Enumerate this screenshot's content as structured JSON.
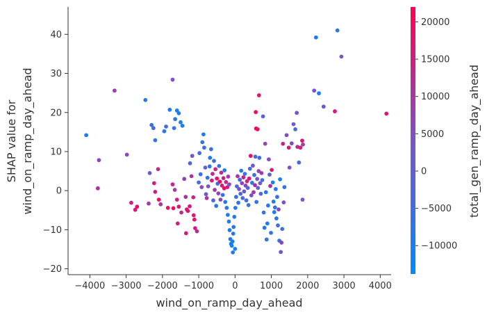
{
  "chart_data": {
    "type": "scatter",
    "title": "",
    "xlabel": "wind_on_ramp_day_ahead",
    "ylabel_line1": "SHAP value for",
    "ylabel_line2": "wind_on_ramp_day_ahead",
    "xlim": [
      -4600,
      4300
    ],
    "ylim": [
      -21.5,
      47
    ],
    "xticks": [
      -4000,
      -3000,
      -2000,
      -1000,
      0,
      1000,
      2000,
      3000,
      4000
    ],
    "yticks": [
      -20,
      -10,
      0,
      10,
      20,
      30,
      40
    ],
    "grid": false,
    "colorbar": {
      "label": "total_gen_ramp_day_ahead",
      "range": [
        -13800,
        22000
      ],
      "ticks": [
        -10000,
        -5000,
        0,
        5000,
        10000,
        15000,
        20000
      ],
      "low_color": "#008afb",
      "mid_color": "#7c52c8",
      "high_color": "#ff0052"
    },
    "points": [
      {
        "x": -4100,
        "y": 14.2,
        "c": -9000
      },
      {
        "x": -3750,
        "y": 7.8,
        "c": 6000
      },
      {
        "x": -3780,
        "y": 0.6,
        "c": 11000
      },
      {
        "x": -3320,
        "y": 25.6,
        "c": 8000
      },
      {
        "x": -2980,
        "y": 9.2,
        "c": 6500
      },
      {
        "x": -2860,
        "y": -3.1,
        "c": 14000
      },
      {
        "x": -2750,
        "y": -4.9,
        "c": 16000
      },
      {
        "x": -2700,
        "y": -4.1,
        "c": 18000
      },
      {
        "x": -2470,
        "y": 23.2,
        "c": -9000
      },
      {
        "x": -2380,
        "y": -3.3,
        "c": 9000
      },
      {
        "x": -2350,
        "y": 4.5,
        "c": 3000
      },
      {
        "x": -2300,
        "y": 16.8,
        "c": -6000
      },
      {
        "x": -2250,
        "y": 16.0,
        "c": -3000
      },
      {
        "x": -2200,
        "y": 12.9,
        "c": -8000
      },
      {
        "x": -2230,
        "y": 1.9,
        "c": 16000
      },
      {
        "x": -2200,
        "y": -0.3,
        "c": 15000
      },
      {
        "x": -2120,
        "y": 5.5,
        "c": 13000
      },
      {
        "x": -2100,
        "y": -2.3,
        "c": 19000
      },
      {
        "x": -2050,
        "y": -3.5,
        "c": 11000
      },
      {
        "x": -1950,
        "y": 15.2,
        "c": -7000
      },
      {
        "x": -1900,
        "y": 16.4,
        "c": -5000
      },
      {
        "x": -1800,
        "y": 20.7,
        "c": -9000
      },
      {
        "x": -1720,
        "y": 28.4,
        "c": 4000
      },
      {
        "x": -1650,
        "y": 18.3,
        "c": -8000
      },
      {
        "x": -1600,
        "y": 20.5,
        "c": -9000
      },
      {
        "x": -1550,
        "y": 19.8,
        "c": -10000
      },
      {
        "x": -1680,
        "y": 16.0,
        "c": -6000
      },
      {
        "x": -1500,
        "y": 17.5,
        "c": -9500
      },
      {
        "x": -1450,
        "y": 16.6,
        "c": -8500
      },
      {
        "x": -1720,
        "y": 1.6,
        "c": 14000
      },
      {
        "x": -1660,
        "y": 0.2,
        "c": 9000
      },
      {
        "x": -1600,
        "y": -2.3,
        "c": 14000
      },
      {
        "x": -1550,
        "y": -4.1,
        "c": 17000
      },
      {
        "x": -1700,
        "y": -4.5,
        "c": 20000
      },
      {
        "x": -1480,
        "y": -5.6,
        "c": 13000
      },
      {
        "x": -1580,
        "y": -8.4,
        "c": 16000
      },
      {
        "x": -1850,
        "y": -4.4,
        "c": 19000
      },
      {
        "x": -1400,
        "y": 3.0,
        "c": 8000
      },
      {
        "x": -1360,
        "y": -1.6,
        "c": 11000
      },
      {
        "x": -1350,
        "y": -10.9,
        "c": 17000
      },
      {
        "x": -1330,
        "y": -4.8,
        "c": 15000
      },
      {
        "x": -1300,
        "y": -5.2,
        "c": 18000
      },
      {
        "x": -1250,
        "y": -4.0,
        "c": 16000
      },
      {
        "x": -1240,
        "y": 7.0,
        "c": -2000
      },
      {
        "x": -1200,
        "y": 3.7,
        "c": 11000
      },
      {
        "x": -1180,
        "y": 8.9,
        "c": 3000
      },
      {
        "x": -1150,
        "y": -1.7,
        "c": 13000
      },
      {
        "x": -1140,
        "y": -6.3,
        "c": 15000
      },
      {
        "x": -1120,
        "y": -7.4,
        "c": 18000
      },
      {
        "x": -1100,
        "y": -9.6,
        "c": 15000
      },
      {
        "x": -1050,
        "y": -10.4,
        "c": 12000
      },
      {
        "x": -1000,
        "y": 2.1,
        "c": -4000
      },
      {
        "x": -980,
        "y": 9.6,
        "c": -4000
      },
      {
        "x": -950,
        "y": 4.2,
        "c": -6000
      },
      {
        "x": -920,
        "y": 0.9,
        "c": 6000
      },
      {
        "x": -900,
        "y": 12.4,
        "c": -8000
      },
      {
        "x": -870,
        "y": 14.4,
        "c": -9000
      },
      {
        "x": -850,
        "y": 11.0,
        "c": -5000
      },
      {
        "x": -820,
        "y": 5.9,
        "c": -1000
      },
      {
        "x": -800,
        "y": -0.9,
        "c": 2000
      },
      {
        "x": -780,
        "y": -1.9,
        "c": 11000
      },
      {
        "x": -760,
        "y": 3.3,
        "c": -8000
      },
      {
        "x": -740,
        "y": 1.1,
        "c": 4000
      },
      {
        "x": -700,
        "y": 6.2,
        "c": -7000
      },
      {
        "x": -690,
        "y": 8.4,
        "c": -9000
      },
      {
        "x": -660,
        "y": 10.6,
        "c": -6000
      },
      {
        "x": -640,
        "y": 2.6,
        "c": 16000
      },
      {
        "x": -620,
        "y": 4.3,
        "c": 13000
      },
      {
        "x": -600,
        "y": -2.5,
        "c": -3000
      },
      {
        "x": -580,
        "y": 7.6,
        "c": -4000
      },
      {
        "x": -560,
        "y": 0.2,
        "c": 9000
      },
      {
        "x": -540,
        "y": 5.5,
        "c": 14000
      },
      {
        "x": -520,
        "y": -3.9,
        "c": -7000
      },
      {
        "x": -500,
        "y": 3.1,
        "c": 18000
      },
      {
        "x": -480,
        "y": 1.8,
        "c": -5000
      },
      {
        "x": -460,
        "y": -0.7,
        "c": 7000
      },
      {
        "x": -440,
        "y": 6.3,
        "c": -8000
      },
      {
        "x": -420,
        "y": 2.3,
        "c": 20000
      },
      {
        "x": -400,
        "y": -2.3,
        "c": 6000
      },
      {
        "x": -380,
        "y": 4.6,
        "c": 12000
      },
      {
        "x": -360,
        "y": 1.3,
        "c": 17000
      },
      {
        "x": -340,
        "y": -1.1,
        "c": -6000
      },
      {
        "x": -320,
        "y": 3.2,
        "c": 15000
      },
      {
        "x": -300,
        "y": 0.6,
        "c": 19000
      },
      {
        "x": -290,
        "y": 5.2,
        "c": -9000
      },
      {
        "x": -270,
        "y": -2.9,
        "c": -9000
      },
      {
        "x": -250,
        "y": 2.2,
        "c": 14000
      },
      {
        "x": -230,
        "y": -4.4,
        "c": -8000
      },
      {
        "x": -210,
        "y": 0.9,
        "c": 16000
      },
      {
        "x": -200,
        "y": -6.2,
        "c": -9000
      },
      {
        "x": -190,
        "y": 3.6,
        "c": 9000
      },
      {
        "x": -170,
        "y": -7.9,
        "c": -10000
      },
      {
        "x": -160,
        "y": 1.6,
        "c": 5000
      },
      {
        "x": -150,
        "y": -10.1,
        "c": -9000
      },
      {
        "x": -130,
        "y": -12.4,
        "c": -11000
      },
      {
        "x": -110,
        "y": -13.6,
        "c": -10000
      },
      {
        "x": -90,
        "y": -14.1,
        "c": -12000
      },
      {
        "x": -70,
        "y": -13.0,
        "c": -9000
      },
      {
        "x": -60,
        "y": -15.8,
        "c": -9000
      },
      {
        "x": -50,
        "y": -11.0,
        "c": -8000
      },
      {
        "x": -40,
        "y": -9.3,
        "c": -7000
      },
      {
        "x": -20,
        "y": -6.7,
        "c": -9000
      },
      {
        "x": 0,
        "y": -14.9,
        "c": -10000
      },
      {
        "x": 10,
        "y": -4.4,
        "c": -8000
      },
      {
        "x": 30,
        "y": -1.6,
        "c": -6000
      },
      {
        "x": 50,
        "y": 1.1,
        "c": -2000
      },
      {
        "x": 70,
        "y": 3.7,
        "c": 10000
      },
      {
        "x": 90,
        "y": -3.1,
        "c": -7000
      },
      {
        "x": 110,
        "y": 0.4,
        "c": 4000
      },
      {
        "x": 130,
        "y": 2.8,
        "c": -4000
      },
      {
        "x": 150,
        "y": -0.8,
        "c": -2000
      },
      {
        "x": 170,
        "y": 5.1,
        "c": -8000
      },
      {
        "x": 190,
        "y": 1.9,
        "c": 6000
      },
      {
        "x": 210,
        "y": -1.9,
        "c": -3000
      },
      {
        "x": 230,
        "y": 3.4,
        "c": 15000
      },
      {
        "x": 250,
        "y": -0.2,
        "c": 2000
      },
      {
        "x": 270,
        "y": 4.3,
        "c": -7000
      },
      {
        "x": 290,
        "y": 1.3,
        "c": 8000
      },
      {
        "x": 310,
        "y": -2.5,
        "c": -5000
      },
      {
        "x": 330,
        "y": 2.4,
        "c": 13000
      },
      {
        "x": 350,
        "y": 0.7,
        "c": -2000
      },
      {
        "x": 370,
        "y": -3.7,
        "c": -6000
      },
      {
        "x": 390,
        "y": 3.1,
        "c": 17000
      },
      {
        "x": 410,
        "y": 5.6,
        "c": -4000
      },
      {
        "x": 430,
        "y": 8.9,
        "c": 18000
      },
      {
        "x": 450,
        "y": -1.2,
        "c": 5000
      },
      {
        "x": 470,
        "y": 2.0,
        "c": -8000
      },
      {
        "x": 490,
        "y": 6.4,
        "c": 2000
      },
      {
        "x": 510,
        "y": -0.4,
        "c": 10000
      },
      {
        "x": 530,
        "y": 4.0,
        "c": -6000
      },
      {
        "x": 550,
        "y": 1.4,
        "c": 12000
      },
      {
        "x": 560,
        "y": 8.7,
        "c": -3000
      },
      {
        "x": 570,
        "y": 20.1,
        "c": 19000
      },
      {
        "x": 580,
        "y": 15.9,
        "c": 21000
      },
      {
        "x": 590,
        "y": -2.9,
        "c": -7000
      },
      {
        "x": 610,
        "y": 3.0,
        "c": 4000
      },
      {
        "x": 620,
        "y": 15.7,
        "c": 19000
      },
      {
        "x": 630,
        "y": 0.7,
        "c": -1000
      },
      {
        "x": 650,
        "y": 5.0,
        "c": 7000
      },
      {
        "x": 660,
        "y": 24.4,
        "c": 17000
      },
      {
        "x": 670,
        "y": 8.4,
        "c": -6000
      },
      {
        "x": 690,
        "y": 1.9,
        "c": 2000
      },
      {
        "x": 710,
        "y": -0.8,
        "c": -3000
      },
      {
        "x": 730,
        "y": 4.5,
        "c": 8000
      },
      {
        "x": 750,
        "y": 2.7,
        "c": -5000
      },
      {
        "x": 770,
        "y": 19.0,
        "c": -2000
      },
      {
        "x": 790,
        "y": -5.6,
        "c": -6000
      },
      {
        "x": 810,
        "y": -9.5,
        "c": -8000
      },
      {
        "x": 830,
        "y": 12.0,
        "c": 7000
      },
      {
        "x": 850,
        "y": -0.4,
        "c": -7000
      },
      {
        "x": 870,
        "y": -12.5,
        "c": -7000
      },
      {
        "x": 890,
        "y": -8.4,
        "c": -9000
      },
      {
        "x": 910,
        "y": -3.8,
        "c": -8000
      },
      {
        "x": 930,
        "y": 8.0,
        "c": 5000
      },
      {
        "x": 950,
        "y": 4.1,
        "c": -2000
      },
      {
        "x": 970,
        "y": 1.2,
        "c": 11000
      },
      {
        "x": 990,
        "y": -10.8,
        "c": -6000
      },
      {
        "x": 1010,
        "y": 5.3,
        "c": 16000
      },
      {
        "x": 1040,
        "y": 2.1,
        "c": -9000
      },
      {
        "x": 1060,
        "y": -2.8,
        "c": -10000
      },
      {
        "x": 1080,
        "y": -5.5,
        "c": -9000
      },
      {
        "x": 1100,
        "y": -4.3,
        "c": -7000
      },
      {
        "x": 1120,
        "y": 0.4,
        "c": -9000
      },
      {
        "x": 1140,
        "y": -7.1,
        "c": -8000
      },
      {
        "x": 1160,
        "y": -1.6,
        "c": -6000
      },
      {
        "x": 1180,
        "y": -8.9,
        "c": -5000
      },
      {
        "x": 1200,
        "y": -4.8,
        "c": 6000
      },
      {
        "x": 1220,
        "y": -12.8,
        "c": -5000
      },
      {
        "x": 1240,
        "y": 2.9,
        "c": -11000
      },
      {
        "x": 1260,
        "y": -15.7,
        "c": 3000
      },
      {
        "x": 1280,
        "y": -13.3,
        "c": 7000
      },
      {
        "x": 1300,
        "y": -9.8,
        "c": -4000
      },
      {
        "x": 1320,
        "y": 12.0,
        "c": 14000
      },
      {
        "x": 1340,
        "y": -3.0,
        "c": 4000
      },
      {
        "x": 1360,
        "y": 0.9,
        "c": -6000
      },
      {
        "x": 1420,
        "y": 14.2,
        "c": 5000
      },
      {
        "x": 1480,
        "y": 11.0,
        "c": 16000
      },
      {
        "x": 1500,
        "y": 5.9,
        "c": 4000
      },
      {
        "x": 1560,
        "y": 12.1,
        "c": 6000
      },
      {
        "x": 1610,
        "y": 17.0,
        "c": 2000
      },
      {
        "x": 1660,
        "y": 15.7,
        "c": -4000
      },
      {
        "x": 1700,
        "y": 19.9,
        "c": 3000
      },
      {
        "x": 1720,
        "y": 11.2,
        "c": 12000
      },
      {
        "x": 1760,
        "y": 7.2,
        "c": -3000
      },
      {
        "x": 1800,
        "y": 11.0,
        "c": 15000
      },
      {
        "x": 1850,
        "y": 12.8,
        "c": 17000
      },
      {
        "x": 1870,
        "y": 11.8,
        "c": 9000
      },
      {
        "x": 1860,
        "y": -2.3,
        "c": 4000
      },
      {
        "x": 2180,
        "y": 25.6,
        "c": 3000
      },
      {
        "x": 2230,
        "y": 39.2,
        "c": -9000
      },
      {
        "x": 2310,
        "y": 24.9,
        "c": -11000
      },
      {
        "x": 2440,
        "y": 21.5,
        "c": 2000
      },
      {
        "x": 2750,
        "y": 20.3,
        "c": 17000
      },
      {
        "x": 2820,
        "y": 41.0,
        "c": -8000
      },
      {
        "x": 2930,
        "y": 34.3,
        "c": 3000
      },
      {
        "x": 4170,
        "y": 19.7,
        "c": 17000
      }
    ]
  }
}
